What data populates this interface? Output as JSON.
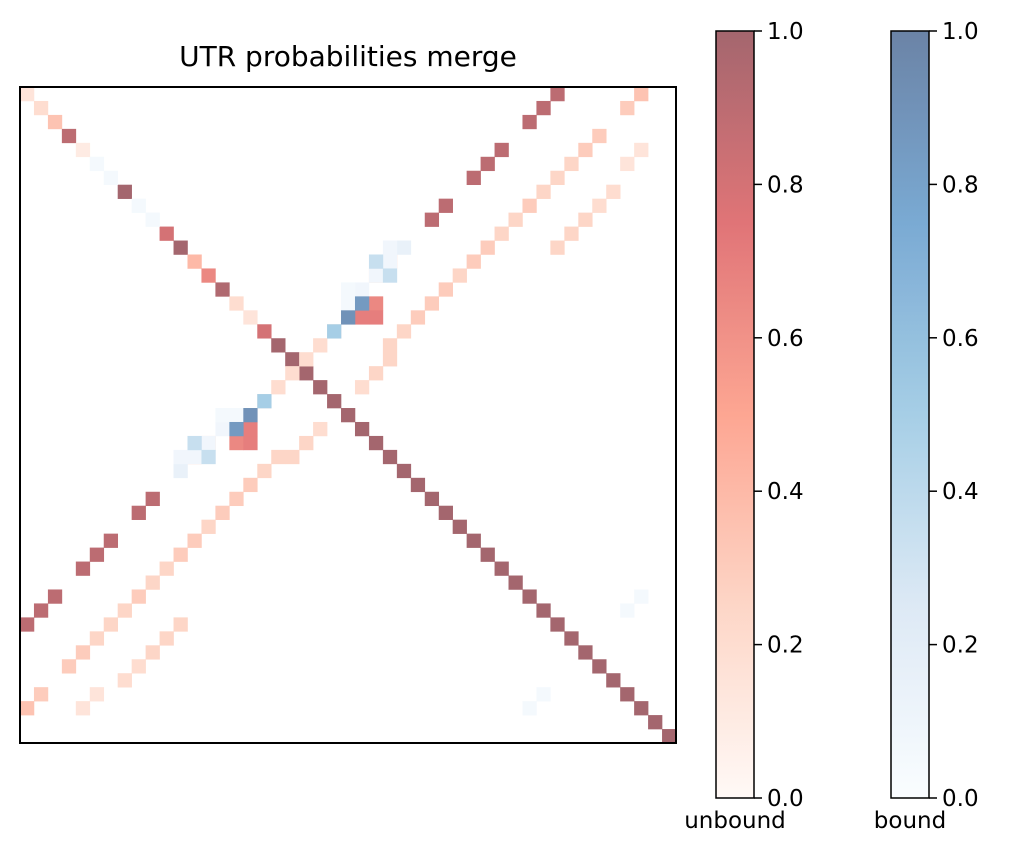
{
  "chart_data": {
    "type": "heatmap",
    "title": "UTR probabilities merge",
    "n": 47,
    "axes_ticks_visible": false,
    "colorbars": [
      {
        "label": "unbound",
        "colormap": "Reds",
        "range": [
          0.0,
          1.0
        ],
        "ticks": [
          "0.0",
          "0.2",
          "0.4",
          "0.6",
          "0.8",
          "1.0"
        ],
        "alpha": 0.6
      },
      {
        "label": "bound",
        "colormap": "Blues",
        "range": [
          0.0,
          1.0
        ],
        "ticks": [
          "0.0",
          "0.2",
          "0.4",
          "0.6",
          "0.8",
          "1.0"
        ],
        "alpha": 0.6
      }
    ],
    "unbound_cells": [
      [
        0,
        0,
        0.15
      ],
      [
        1,
        1,
        0.2
      ],
      [
        2,
        2,
        0.35
      ],
      [
        3,
        3,
        0.9
      ],
      [
        4,
        4,
        0.1
      ],
      [
        7,
        7,
        1.0
      ],
      [
        10,
        10,
        0.8
      ],
      [
        11,
        11,
        1.0
      ],
      [
        12,
        12,
        0.4
      ],
      [
        13,
        13,
        0.65
      ],
      [
        14,
        14,
        0.95
      ],
      [
        15,
        15,
        0.2
      ],
      [
        16,
        16,
        0.15
      ],
      [
        17,
        17,
        0.8
      ],
      [
        18,
        18,
        1.0
      ],
      [
        19,
        19,
        1.0
      ],
      [
        20,
        20,
        1.0
      ],
      [
        21,
        21,
        1.0
      ],
      [
        22,
        22,
        1.0
      ],
      [
        23,
        23,
        1.0
      ],
      [
        24,
        24,
        1.0
      ],
      [
        25,
        25,
        1.0
      ],
      [
        26,
        26,
        1.0
      ],
      [
        27,
        27,
        1.0
      ],
      [
        28,
        28,
        1.0
      ],
      [
        29,
        29,
        1.0
      ],
      [
        30,
        30,
        1.0
      ],
      [
        31,
        31,
        1.0
      ],
      [
        32,
        32,
        1.0
      ],
      [
        33,
        33,
        1.0
      ],
      [
        34,
        34,
        1.0
      ],
      [
        35,
        35,
        1.0
      ],
      [
        36,
        36,
        1.0
      ],
      [
        37,
        37,
        1.0
      ],
      [
        38,
        38,
        1.0
      ],
      [
        39,
        39,
        1.0
      ],
      [
        40,
        40,
        1.0
      ],
      [
        41,
        41,
        1.0
      ],
      [
        42,
        42,
        1.0
      ],
      [
        43,
        43,
        1.0
      ],
      [
        44,
        44,
        1.0
      ],
      [
        45,
        45,
        1.0
      ],
      [
        46,
        46,
        1.0
      ],
      [
        0,
        38,
        0.9
      ],
      [
        1,
        37,
        0.9
      ],
      [
        2,
        36,
        0.9
      ],
      [
        4,
        34,
        0.9
      ],
      [
        5,
        33,
        0.9
      ],
      [
        6,
        32,
        0.9
      ],
      [
        8,
        30,
        0.9
      ],
      [
        9,
        29,
        0.9
      ],
      [
        38,
        0,
        0.9
      ],
      [
        37,
        1,
        0.9
      ],
      [
        36,
        2,
        0.9
      ],
      [
        34,
        4,
        0.9
      ],
      [
        33,
        5,
        0.9
      ],
      [
        32,
        6,
        0.9
      ],
      [
        30,
        8,
        0.9
      ],
      [
        29,
        9,
        0.9
      ],
      [
        0,
        44,
        0.35
      ],
      [
        1,
        43,
        0.3
      ],
      [
        3,
        41,
        0.3
      ],
      [
        4,
        40,
        0.3
      ],
      [
        5,
        39,
        0.25
      ],
      [
        6,
        38,
        0.25
      ],
      [
        7,
        37,
        0.25
      ],
      [
        8,
        36,
        0.3
      ],
      [
        9,
        35,
        0.25
      ],
      [
        10,
        34,
        0.25
      ],
      [
        11,
        33,
        0.3
      ],
      [
        12,
        32,
        0.3
      ],
      [
        13,
        31,
        0.25
      ],
      [
        14,
        30,
        0.3
      ],
      [
        15,
        29,
        0.3
      ],
      [
        16,
        28,
        0.3
      ],
      [
        17,
        27,
        0.25
      ],
      [
        18,
        26,
        0.25
      ],
      [
        19,
        26,
        0.25
      ],
      [
        20,
        25,
        0.25
      ],
      [
        21,
        24,
        0.2
      ],
      [
        44,
        0,
        0.35
      ],
      [
        43,
        1,
        0.3
      ],
      [
        41,
        3,
        0.3
      ],
      [
        40,
        4,
        0.3
      ],
      [
        39,
        5,
        0.25
      ],
      [
        38,
        6,
        0.25
      ],
      [
        37,
        7,
        0.25
      ],
      [
        36,
        8,
        0.3
      ],
      [
        35,
        9,
        0.25
      ],
      [
        34,
        10,
        0.25
      ],
      [
        33,
        11,
        0.3
      ],
      [
        32,
        12,
        0.3
      ],
      [
        31,
        13,
        0.25
      ],
      [
        30,
        14,
        0.3
      ],
      [
        29,
        15,
        0.3
      ],
      [
        28,
        16,
        0.3
      ],
      [
        27,
        17,
        0.25
      ],
      [
        26,
        18,
        0.25
      ],
      [
        26,
        19,
        0.25
      ],
      [
        25,
        20,
        0.25
      ],
      [
        24,
        21,
        0.2
      ],
      [
        4,
        44,
        0.15
      ],
      [
        5,
        43,
        0.15
      ],
      [
        7,
        42,
        0.2
      ],
      [
        8,
        41,
        0.2
      ],
      [
        9,
        40,
        0.25
      ],
      [
        10,
        39,
        0.25
      ],
      [
        11,
        38,
        0.25
      ],
      [
        44,
        4,
        0.15
      ],
      [
        43,
        5,
        0.15
      ],
      [
        42,
        7,
        0.2
      ],
      [
        41,
        8,
        0.2
      ],
      [
        40,
        9,
        0.25
      ],
      [
        39,
        10,
        0.25
      ],
      [
        38,
        11,
        0.25
      ],
      [
        12,
        26,
        0.35
      ],
      [
        13,
        25,
        0.25
      ],
      [
        15,
        24,
        0.15
      ],
      [
        16,
        23,
        0.2
      ],
      [
        17,
        22,
        0.2
      ],
      [
        18,
        21,
        0.2
      ],
      [
        19,
        20,
        0.2
      ],
      [
        26,
        12,
        0.35
      ],
      [
        25,
        13,
        0.25
      ],
      [
        24,
        15,
        0.15
      ],
      [
        23,
        16,
        0.2
      ],
      [
        22,
        17,
        0.2
      ],
      [
        21,
        18,
        0.2
      ],
      [
        20,
        19,
        0.2
      ],
      [
        15,
        25,
        0.65
      ],
      [
        16,
        25,
        0.7
      ],
      [
        16,
        24,
        0.7
      ],
      [
        25,
        15,
        0.65
      ],
      [
        25,
        16,
        0.7
      ],
      [
        24,
        16,
        0.7
      ]
    ],
    "bound_cells": [
      [
        5,
        5,
        0.05
      ],
      [
        6,
        6,
        0.05
      ],
      [
        8,
        8,
        0.05
      ],
      [
        9,
        9,
        0.05
      ],
      [
        11,
        27,
        0.15
      ],
      [
        11,
        26,
        0.08
      ],
      [
        12,
        26,
        0.08
      ],
      [
        27,
        11,
        0.15
      ],
      [
        26,
        11,
        0.08
      ],
      [
        26,
        12,
        0.08
      ],
      [
        13,
        25,
        0.08
      ],
      [
        14,
        24,
        0.08
      ],
      [
        14,
        23,
        0.05
      ],
      [
        15,
        23,
        0.05
      ],
      [
        25,
        13,
        0.08
      ],
      [
        24,
        14,
        0.08
      ],
      [
        23,
        14,
        0.05
      ],
      [
        23,
        15,
        0.05
      ],
      [
        15,
        24,
        0.85
      ],
      [
        16,
        23,
        0.9
      ],
      [
        17,
        22,
        0.5
      ],
      [
        24,
        15,
        0.85
      ],
      [
        23,
        16,
        0.9
      ],
      [
        22,
        17,
        0.5
      ],
      [
        12,
        25,
        0.35
      ],
      [
        13,
        26,
        0.35
      ],
      [
        26,
        13,
        0.35
      ],
      [
        25,
        12,
        0.35
      ],
      [
        43,
        37,
        0.05
      ],
      [
        44,
        36,
        0.05
      ],
      [
        37,
        43,
        0.05
      ],
      [
        36,
        44,
        0.05
      ]
    ]
  }
}
